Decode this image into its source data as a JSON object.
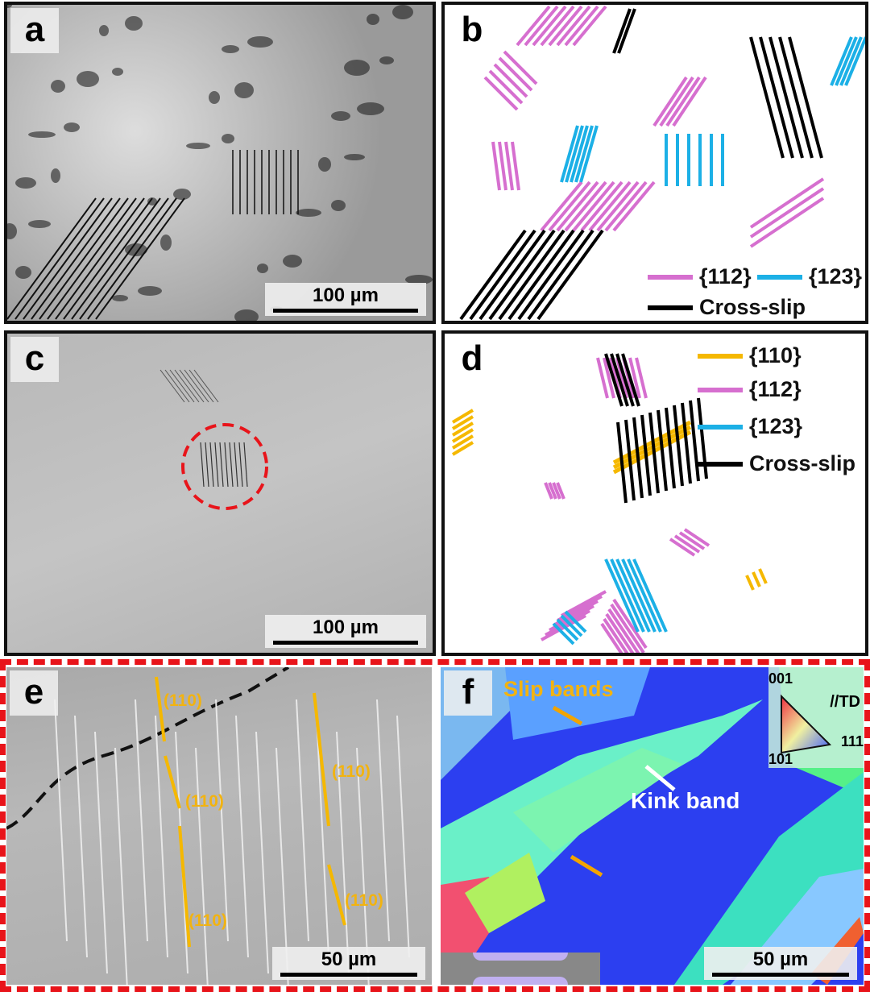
{
  "panels": {
    "a": {
      "label": "a",
      "scale": "100 µm"
    },
    "b": {
      "label": "b",
      "legend": {
        "s112": "{112}",
        "s123": "{123}",
        "cross": "Cross-slip"
      }
    },
    "c": {
      "label": "c",
      "scale": "100 µm"
    },
    "d": {
      "label": "d",
      "legend": {
        "s110": "{110}",
        "s112": "{112}",
        "s123": "{123}",
        "cross": "Cross-slip"
      }
    },
    "e": {
      "label": "e",
      "scale": "50 µm",
      "annotations": [
        "(110)",
        "(110)",
        "(110)",
        "(110)",
        "(110)"
      ]
    },
    "f": {
      "label": "f",
      "scale": "50 µm",
      "slip_bands": "Slip bands",
      "kink_band": "Kink band",
      "ipf": {
        "top": "001",
        "left": "101",
        "right": "111",
        "direction": "//TD"
      }
    }
  },
  "colors": {
    "s110": "#f5b800",
    "s112": "#d66fcf",
    "s123": "#1cb0e6",
    "cross": "#000000",
    "highlight": "#e8141a"
  }
}
